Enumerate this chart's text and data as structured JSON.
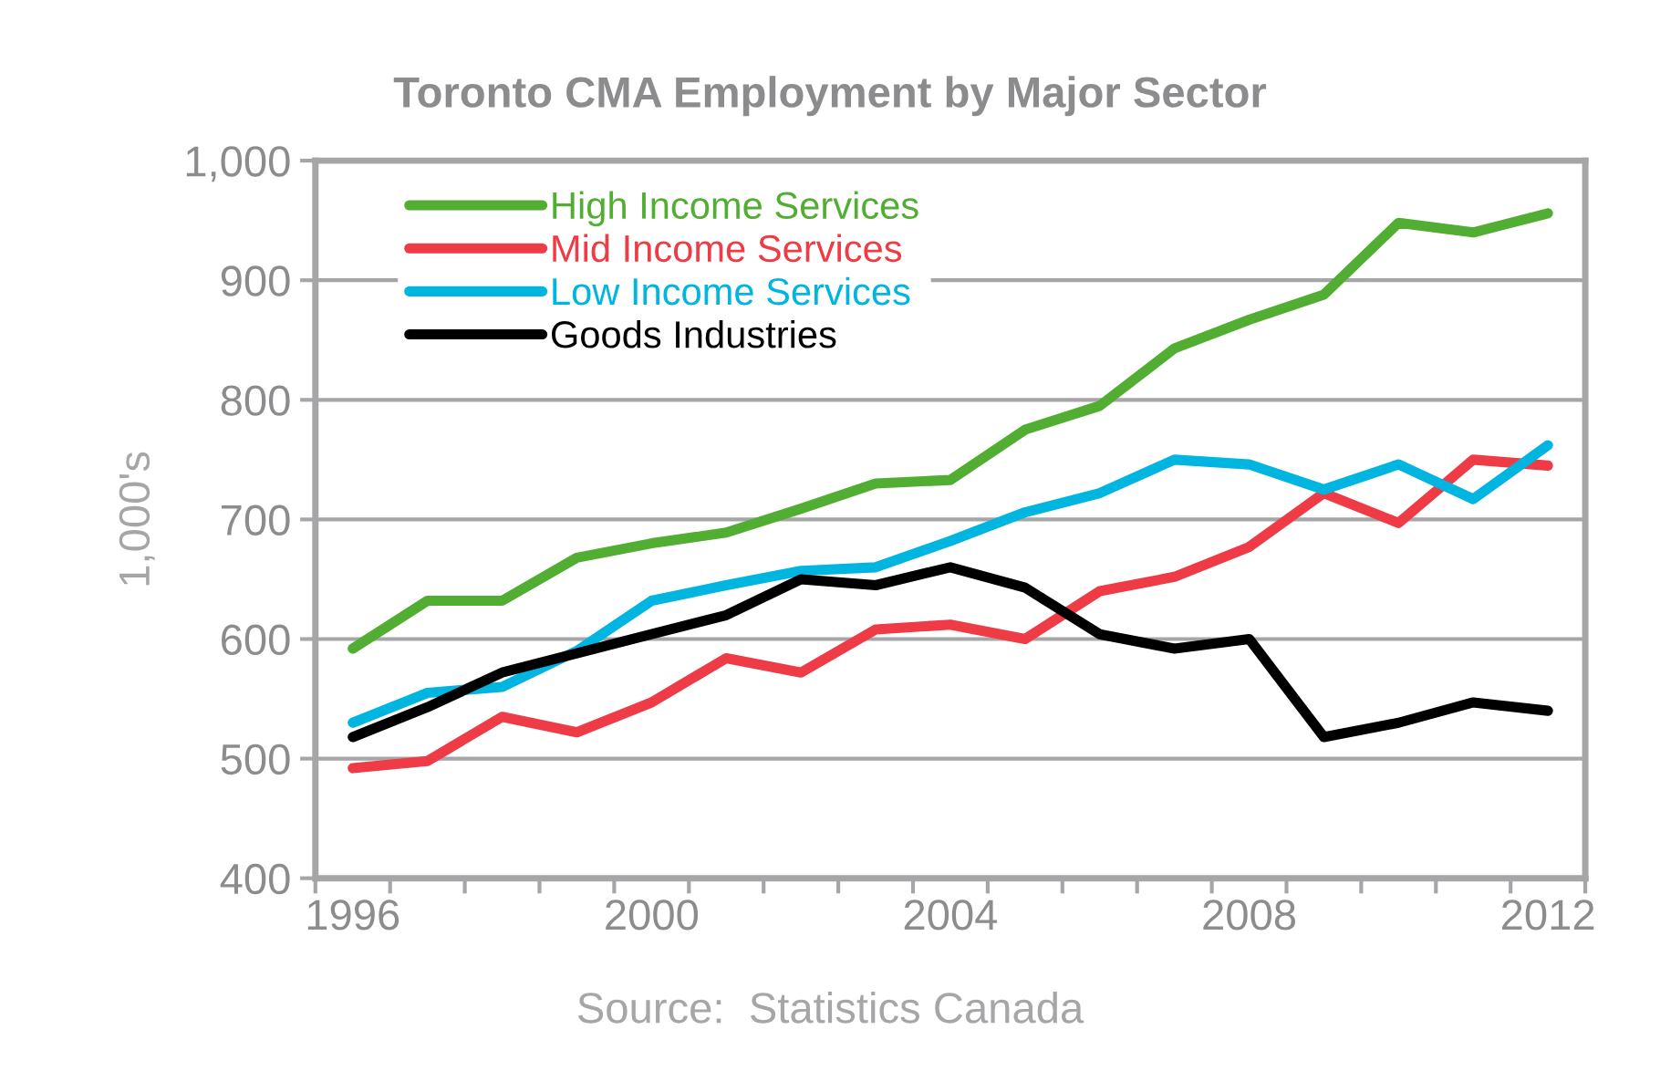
{
  "chart_data": {
    "type": "line",
    "title": "Toronto CMA Employment by Major Sector",
    "ylabel": "1,000's",
    "annotations": [
      "Source:  Statistics Canada"
    ],
    "categories": [
      "1996",
      null,
      null,
      null,
      "2000",
      null,
      null,
      null,
      "2004",
      null,
      null,
      null,
      "2008",
      null,
      null,
      null,
      "2012"
    ],
    "series": [
      {
        "name": "High Income Services",
        "color": "#52ae32",
        "values": [
          592,
          632,
          632,
          668,
          680,
          689,
          709,
          730,
          733,
          775,
          795,
          843,
          867,
          888,
          948,
          940,
          956
        ]
      },
      {
        "name": "Mid Income Services",
        "color": "#ee3b45",
        "values": [
          492,
          498,
          535,
          522,
          547,
          584,
          572,
          608,
          612,
          600,
          640,
          652,
          677,
          722,
          697,
          750,
          745
        ]
      },
      {
        "name": "Low Income Services",
        "color": "#00b5e0",
        "values": [
          530,
          555,
          560,
          590,
          632,
          645,
          657,
          660,
          682,
          706,
          722,
          750,
          746,
          725,
          746,
          717,
          762
        ]
      },
      {
        "name": "Goods Industries",
        "color": "#000000",
        "values": [
          518,
          543,
          572,
          588,
          604,
          620,
          650,
          645,
          660,
          643,
          604,
          592,
          600,
          518,
          530,
          547,
          540
        ]
      }
    ],
    "ylim": [
      400,
      1000
    ],
    "yticks": [
      400,
      500,
      600,
      700,
      800,
      900,
      {
        "value": 1000,
        "label": "1,000"
      }
    ],
    "grid": "y",
    "legend": "top left",
    "marker": "none",
    "line_style": "solid"
  }
}
